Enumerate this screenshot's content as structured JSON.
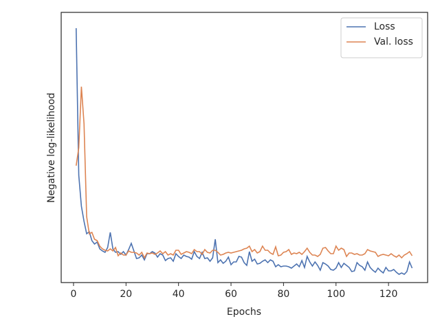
{
  "chart_data": {
    "type": "line",
    "xlabel": "Epochs",
    "ylabel": "Negative log-likelihood",
    "x": [
      1,
      2,
      3,
      4,
      5,
      6,
      7,
      8,
      9,
      10,
      11,
      12,
      13,
      14,
      15,
      16,
      17,
      18,
      19,
      20,
      21,
      22,
      23,
      24,
      25,
      26,
      27,
      28,
      29,
      30,
      31,
      32,
      33,
      34,
      35,
      36,
      37,
      38,
      39,
      40,
      41,
      42,
      43,
      44,
      45,
      46,
      47,
      48,
      49,
      50,
      51,
      52,
      53,
      54,
      55,
      56,
      57,
      58,
      59,
      60,
      61,
      62,
      63,
      64,
      65,
      66,
      67,
      68,
      69,
      70,
      71,
      72,
      73,
      74,
      75,
      76,
      77,
      78,
      79,
      80,
      81,
      82,
      83,
      84,
      85,
      86,
      87,
      88,
      89,
      90,
      91,
      92,
      93,
      94,
      95,
      96,
      97,
      98,
      99,
      100,
      101,
      102,
      103,
      104,
      105,
      106,
      107,
      108,
      109,
      110,
      111,
      112,
      113,
      114,
      115,
      116,
      117,
      118,
      119,
      120,
      121,
      122,
      123,
      124,
      125,
      126,
      127,
      128,
      129
    ],
    "series": [
      {
        "name": "Loss",
        "color": "#4c72b0",
        "values": [
          370,
          156,
          111,
          89,
          71,
          74,
          61,
          56,
          59,
          49,
          46,
          44,
          51,
          73,
          49,
          44,
          45,
          41,
          45,
          40,
          48,
          57,
          46,
          35,
          36,
          40,
          33,
          42,
          42,
          45,
          43,
          37,
          42,
          40,
          32,
          35,
          36,
          31,
          42,
          38,
          35,
          40,
          38,
          37,
          34,
          45,
          38,
          35,
          44,
          35,
          36,
          31,
          36,
          63,
          29,
          33,
          28,
          31,
          37,
          26,
          30,
          30,
          38,
          37,
          29,
          25,
          45,
          31,
          34,
          27,
          28,
          31,
          33,
          29,
          33,
          31,
          23,
          26,
          23,
          24,
          24,
          23,
          21,
          24,
          27,
          23,
          32,
          22,
          38,
          30,
          24,
          30,
          25,
          18,
          29,
          27,
          24,
          19,
          18,
          21,
          29,
          22,
          28,
          25,
          22,
          16,
          17,
          29,
          25,
          23,
          18,
          30,
          22,
          18,
          15,
          21,
          17,
          14,
          22,
          17,
          17,
          19,
          15,
          12,
          14,
          12,
          16,
          30,
          21
        ]
      },
      {
        "name": "Val. loss",
        "color": "#dd8452",
        "values": [
          170,
          196,
          285,
          231,
          96,
          71,
          73,
          63,
          61,
          53,
          49,
          47,
          46,
          49,
          46,
          51,
          39,
          43,
          40,
          40,
          46,
          44,
          44,
          43,
          40,
          44,
          36,
          43,
          42,
          43,
          41,
          43,
          46,
          42,
          45,
          40,
          42,
          40,
          47,
          47,
          41,
          43,
          45,
          44,
          42,
          48,
          45,
          45,
          41,
          48,
          44,
          43,
          47,
          47,
          44,
          40,
          41,
          43,
          44,
          43,
          44,
          45,
          46,
          47,
          49,
          50,
          53,
          45,
          48,
          43,
          45,
          53,
          47,
          47,
          43,
          41,
          52,
          39,
          40,
          44,
          45,
          48,
          41,
          43,
          42,
          44,
          41,
          45,
          50,
          44,
          40,
          40,
          38,
          41,
          50,
          51,
          46,
          42,
          42,
          53,
          47,
          50,
          48,
          38,
          43,
          43,
          41,
          42,
          40,
          40,
          42,
          48,
          46,
          45,
          44,
          38,
          40,
          41,
          40,
          39,
          42,
          39,
          37,
          40,
          36,
          40,
          42,
          45,
          39
        ]
      }
    ],
    "xlim": [
      -4.7,
      134.9
    ],
    "xticks": [
      0,
      20,
      40,
      60,
      80,
      100,
      120
    ],
    "ylim": [
      0,
      393
    ],
    "legend": "upper right"
  }
}
